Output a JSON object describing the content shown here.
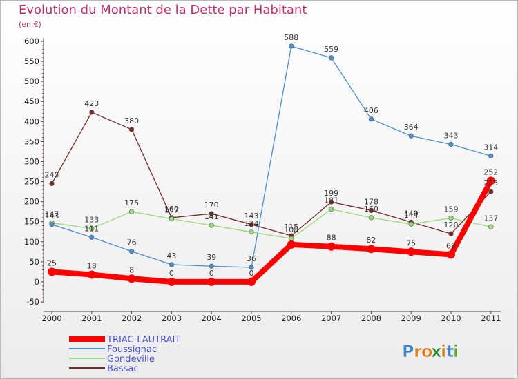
{
  "header": {
    "title": "Evolution du Montant de la Dette par Habitant",
    "subtitle": "(en €)"
  },
  "brand": {
    "name": "Proxiti",
    "letters": [
      "P",
      "r",
      "o",
      "x",
      "i",
      "t",
      "i"
    ],
    "letter_colors": [
      "#3c86c8",
      "#e07a1a",
      "#e07a1a",
      "#2f8d3a",
      "#e07a1a",
      "#3c86c8",
      "#5aa82c"
    ]
  },
  "chart_data": {
    "type": "line",
    "title": "Evolution du Montant de la Dette par Habitant",
    "ylabel": "(en €)",
    "xlabel": "",
    "x": [
      "2000",
      "2001",
      "2002",
      "2003",
      "2004",
      "2005",
      "2006",
      "2007",
      "2008",
      "2009",
      "2010",
      "2011"
    ],
    "ylim": [
      -50,
      600
    ],
    "yticks": [
      "-50",
      "0",
      "50",
      "100",
      "150",
      "200",
      "250",
      "300",
      "350",
      "400",
      "450",
      "500",
      "550",
      "600"
    ],
    "grid": false,
    "legend_position": "bottom-left",
    "series": [
      {
        "name": "TRIAC-LAUTRAIT",
        "color": "#ff0000",
        "values": [
          25,
          18,
          8,
          0,
          0,
          0,
          93,
          88,
          82,
          75,
          68,
          252
        ],
        "labels": [
          "25",
          "18",
          "8",
          "0",
          "0",
          "0",
          "",
          "88",
          "82",
          "75",
          "68",
          "252"
        ]
      },
      {
        "name": "Foussignac",
        "color": "#4a8fd0",
        "values": [
          143,
          111,
          76,
          43,
          39,
          36,
          588,
          559,
          406,
          364,
          343,
          314
        ],
        "labels": [
          "143",
          "111",
          "76",
          "43",
          "39",
          "36",
          "588",
          "559",
          "406",
          "364",
          "343",
          "314"
        ]
      },
      {
        "name": "Gondeville",
        "color": "#96dc78",
        "values": [
          147,
          133,
          175,
          157,
          141,
          124,
          108,
          181,
          160,
          144,
          159,
          137
        ],
        "labels": [
          "147",
          "133",
          "175",
          "157",
          "141",
          "124",
          "108",
          "181",
          "160",
          "144",
          "159",
          "137"
        ]
      },
      {
        "name": "Bassac",
        "color": "#7a2828",
        "values": [
          245,
          423,
          380,
          160,
          170,
          143,
          115,
          199,
          178,
          149,
          120,
          225
        ],
        "labels": [
          "245",
          "423",
          "380",
          "160",
          "170",
          "143",
          "115",
          "199",
          "178",
          "149",
          "120",
          "225"
        ]
      }
    ]
  }
}
